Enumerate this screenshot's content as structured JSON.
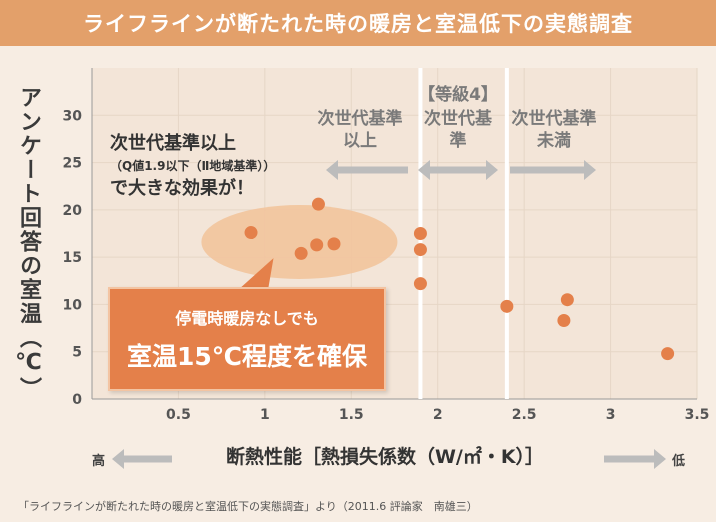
{
  "header": {
    "title": "ライフラインが断たれた時の暖房と室温低下の実態調査"
  },
  "axes": {
    "ylabel": "アンケート回答の室温（℃）",
    "xlabel": "断熱性能［熱損失係数（W/㎡・K）］",
    "x_high": "高",
    "x_low": "低"
  },
  "bands": {
    "left": "次世代基準以上",
    "middle_grade": "【等級4】",
    "middle": "次世代基準",
    "right": "次世代基準未満"
  },
  "note": {
    "line1": "次世代基準以上",
    "line2": "（Q値1.9以下（Ⅱ地域基準））",
    "line3": "で大きな効果が！"
  },
  "callout": {
    "line1": "停電時暖房なしでも",
    "line2": "室温15℃程度を確保"
  },
  "footnote": "「ライフラインが断たれた時の暖房と室温低下の実態調査」より（2011.6 評論家　南雄三）",
  "colors": {
    "banner": "#e3a06a",
    "point": "#e4804a",
    "callout": "#e4804a",
    "highlight_ellipse": "#f2c49c",
    "plot_bg": "#f3e5d8",
    "arrow": "#bcbcbc"
  },
  "chart_data": {
    "type": "scatter",
    "xlim": [
      0,
      3.5
    ],
    "ylim": [
      0,
      35
    ],
    "x_ticks": [
      0.5,
      1,
      1.5,
      2,
      2.5,
      3,
      3.5
    ],
    "x_tick_labels": [
      "0.5",
      "1",
      "1.5",
      "2",
      "2.5",
      "3",
      "3.5"
    ],
    "y_ticks": [
      0,
      5,
      10,
      15,
      20,
      25,
      30
    ],
    "y_tick_labels": [
      "0",
      "5",
      "10",
      "15",
      "20",
      "25",
      "30"
    ],
    "band_boundaries": [
      1.9,
      2.4
    ],
    "grid": true,
    "points": [
      {
        "x": 0.92,
        "y": 17.6
      },
      {
        "x": 1.21,
        "y": 15.4
      },
      {
        "x": 1.3,
        "y": 16.3
      },
      {
        "x": 1.31,
        "y": 20.6
      },
      {
        "x": 1.4,
        "y": 16.4
      },
      {
        "x": 1.9,
        "y": 17.5
      },
      {
        "x": 1.9,
        "y": 15.8
      },
      {
        "x": 1.9,
        "y": 12.2
      },
      {
        "x": 2.4,
        "y": 9.8
      },
      {
        "x": 2.73,
        "y": 8.3
      },
      {
        "x": 2.75,
        "y": 10.5
      },
      {
        "x": 3.33,
        "y": 4.8
      }
    ]
  }
}
